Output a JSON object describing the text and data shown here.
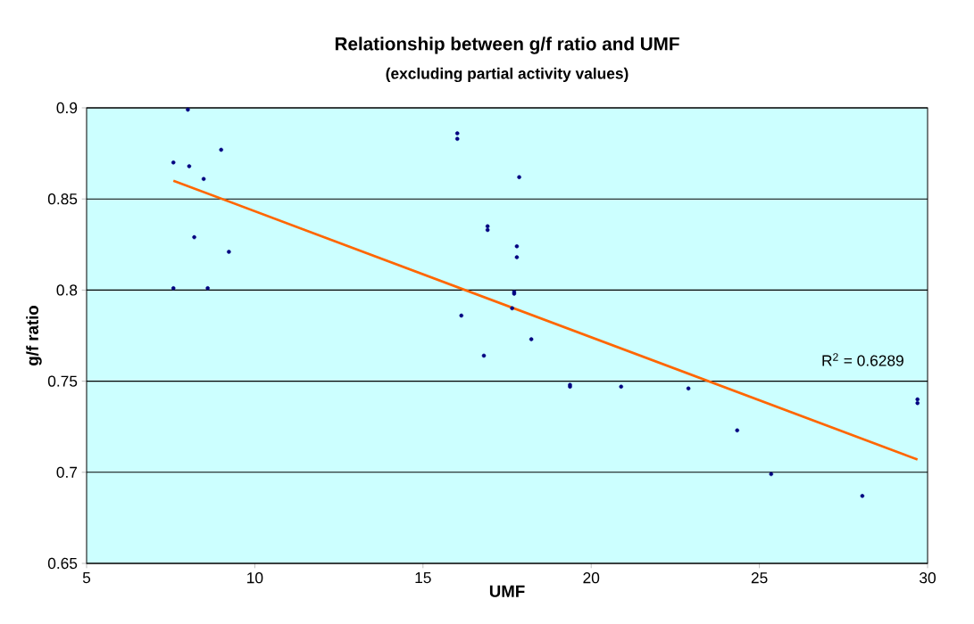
{
  "chart_data": {
    "type": "scatter",
    "title": "Relationship between g/f ratio and UMF",
    "subtitle": "(excluding partial activity values)",
    "xlabel": "UMF",
    "ylabel": "g/f ratio",
    "series": [
      {
        "color": "#000080",
        "marker": "circle",
        "x": [
          8.01,
          9.0,
          7.58,
          8.05,
          8.48,
          8.2,
          9.23,
          7.58,
          8.6,
          16.02,
          16.02,
          17.86,
          16.92,
          16.92,
          17.79,
          17.79,
          17.71,
          17.71,
          17.65,
          16.14,
          18.22,
          16.81,
          19.37,
          19.37,
          20.89,
          22.89,
          24.34,
          25.35,
          28.06,
          29.7,
          29.7
        ],
        "values": [
          0.899,
          0.877,
          0.87,
          0.868,
          0.861,
          0.829,
          0.821,
          0.801,
          0.801,
          0.886,
          0.883,
          0.862,
          0.835,
          0.833,
          0.824,
          0.818,
          0.799,
          0.798,
          0.79,
          0.786,
          0.773,
          0.764,
          0.748,
          0.747,
          0.747,
          0.746,
          0.723,
          0.699,
          0.687,
          0.74,
          0.738
        ]
      },
      {
        "type": "line",
        "color": "#ff6600",
        "marker": "none",
        "line_style": "solid",
        "x": [
          7.58,
          29.7
        ],
        "values": [
          0.86,
          0.707
        ]
      }
    ],
    "annotations": [
      "R$^{2}$ = 0.6289"
    ],
    "xlim": [
      5,
      30
    ],
    "ylim": [
      0.65,
      0.9
    ],
    "xticks": [
      5,
      10,
      15,
      20,
      25,
      30
    ],
    "yticks": [
      0.65,
      0.7,
      0.75,
      0.8,
      0.85,
      0.9
    ],
    "grid": "y"
  }
}
